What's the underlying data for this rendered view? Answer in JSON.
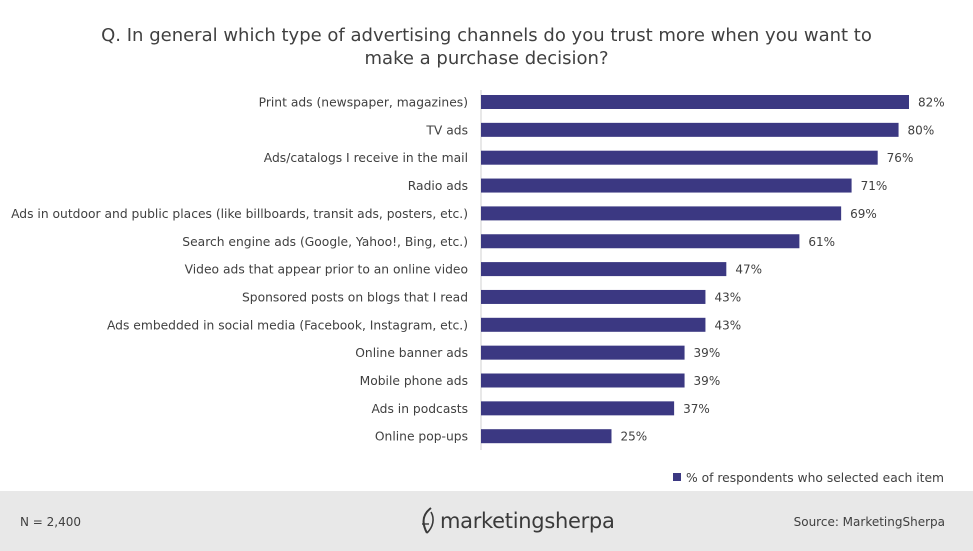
{
  "title_line1": "Q. In general which type of advertising channels do you trust more when you want to",
  "title_line2": "make a purchase decision?",
  "legend_label": "% of respondents who selected each item",
  "sample_size": "N = 2,400",
  "source": "Source:  MarketingSherpa",
  "logo_text_part1": "marketing",
  "logo_text_part2": "sherpa",
  "colors": {
    "bar": "#3b3882",
    "footer_bg": "#e8e8e8",
    "text": "#404040"
  },
  "chart_data": {
    "type": "bar",
    "orientation": "horizontal",
    "title": "Q. In general which type of advertising channels do you trust more when you want to make a purchase decision?",
    "xlim": [
      0,
      82
    ],
    "categories": [
      "Print ads (newspaper, magazines)",
      "TV ads",
      "Ads/catalogs I receive in the mail",
      "Radio ads",
      "Ads in outdoor and public places (like billboards, transit ads, posters, etc.)",
      "Search engine ads (Google, Yahoo!, Bing, etc.)",
      "Video ads that appear prior to an online video",
      "Sponsored posts on blogs that I read",
      "Ads embedded in social media (Facebook, Instagram, etc.)",
      "Online banner ads",
      "Mobile phone ads",
      "Ads in podcasts",
      "Online pop-ups"
    ],
    "series": [
      {
        "name": "% of respondents who selected each item",
        "values": [
          82,
          80,
          76,
          71,
          69,
          61,
          47,
          43,
          43,
          39,
          39,
          37,
          25
        ]
      }
    ],
    "value_labels": [
      "82%",
      "80%",
      "76%",
      "71%",
      "69%",
      "61%",
      "47%",
      "43%",
      "43%",
      "39%",
      "39%",
      "37%",
      "25%"
    ],
    "legend_position": "bottom-right",
    "grid": false
  }
}
